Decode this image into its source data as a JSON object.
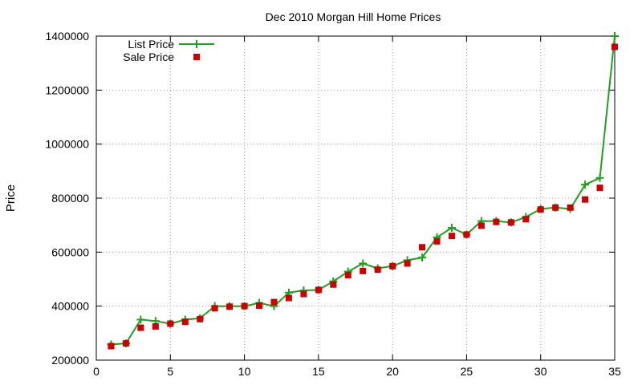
{
  "chart_data": {
    "type": "line",
    "title": "Dec 2010 Morgan Hill Home Prices",
    "xlabel": "",
    "ylabel": "Price",
    "xlim": [
      0,
      35
    ],
    "ylim": [
      200000,
      1400000
    ],
    "xticks": [
      0,
      5,
      10,
      15,
      20,
      25,
      30,
      35
    ],
    "yticks": [
      200000,
      400000,
      600000,
      800000,
      1000000,
      1200000,
      1400000
    ],
    "grid": true,
    "legend_position": "top-left",
    "x": [
      1,
      2,
      3,
      4,
      5,
      6,
      7,
      8,
      9,
      10,
      11,
      12,
      13,
      14,
      15,
      16,
      17,
      18,
      19,
      20,
      21,
      22,
      23,
      24,
      25,
      26,
      27,
      28,
      29,
      30,
      31,
      32,
      33,
      34,
      35
    ],
    "series": [
      {
        "name": "List Price",
        "style": "line-with-plus-markers",
        "color": "#1fa11f",
        "values": [
          258000,
          262000,
          350000,
          345000,
          335000,
          350000,
          355000,
          400000,
          400000,
          400000,
          412000,
          400000,
          450000,
          458000,
          460000,
          492000,
          528000,
          558000,
          540000,
          548000,
          570000,
          580000,
          655000,
          690000,
          665000,
          715000,
          715000,
          710000,
          730000,
          760000,
          765000,
          760000,
          850000,
          875000,
          1400000
        ]
      },
      {
        "name": "Sale Price",
        "style": "square-markers",
        "color": "#cc0000",
        "values": [
          252000,
          262000,
          320000,
          325000,
          335000,
          342000,
          352000,
          392000,
          398000,
          400000,
          402000,
          415000,
          430000,
          445000,
          460000,
          480000,
          515000,
          530000,
          535000,
          548000,
          558000,
          618000,
          640000,
          660000,
          665000,
          698000,
          712000,
          710000,
          722000,
          758000,
          765000,
          765000,
          795000,
          838000,
          1360000
        ]
      }
    ]
  }
}
